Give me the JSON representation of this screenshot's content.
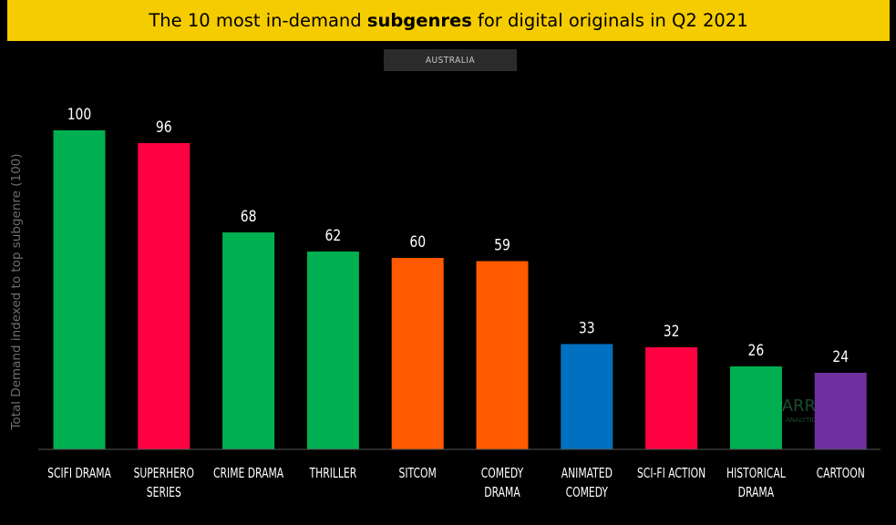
{
  "header": {
    "title_pre": "The 10 most in-demand ",
    "title_bold": "subgenres",
    "title_post": " for digital originals in Q2 2021"
  },
  "badge": "AUSTRALIA",
  "watermark": {
    "brand": "PARROT",
    "sub": "ANALYTICS"
  },
  "chart_data": {
    "type": "bar",
    "title": "The 10 most in-demand subgenres for digital originals in Q2 2021",
    "subtitle": "AUSTRALIA",
    "ylabel": "Total Demand indexed to top subgenre (100)",
    "xlabel": "",
    "ylim": [
      0,
      100
    ],
    "grid": false,
    "categories": [
      [
        "SCIFI DRAMA"
      ],
      [
        "SUPERHERO",
        "SERIES"
      ],
      [
        "CRIME DRAMA"
      ],
      [
        "THRILLER"
      ],
      [
        "SITCOM"
      ],
      [
        "COMEDY",
        "DRAMA"
      ],
      [
        "ANIMATED",
        "COMEDY"
      ],
      [
        "SCI-FI ACTION"
      ],
      [
        "HISTORICAL",
        "DRAMA"
      ],
      [
        "CARTOON"
      ]
    ],
    "values": [
      100,
      96,
      68,
      62,
      60,
      59,
      33,
      32,
      26,
      24
    ],
    "colors": [
      "#00b050",
      "#ff0040",
      "#00b050",
      "#00b050",
      "#ff5a00",
      "#ff5a00",
      "#0070c0",
      "#ff0040",
      "#00b050",
      "#7030a0"
    ]
  }
}
